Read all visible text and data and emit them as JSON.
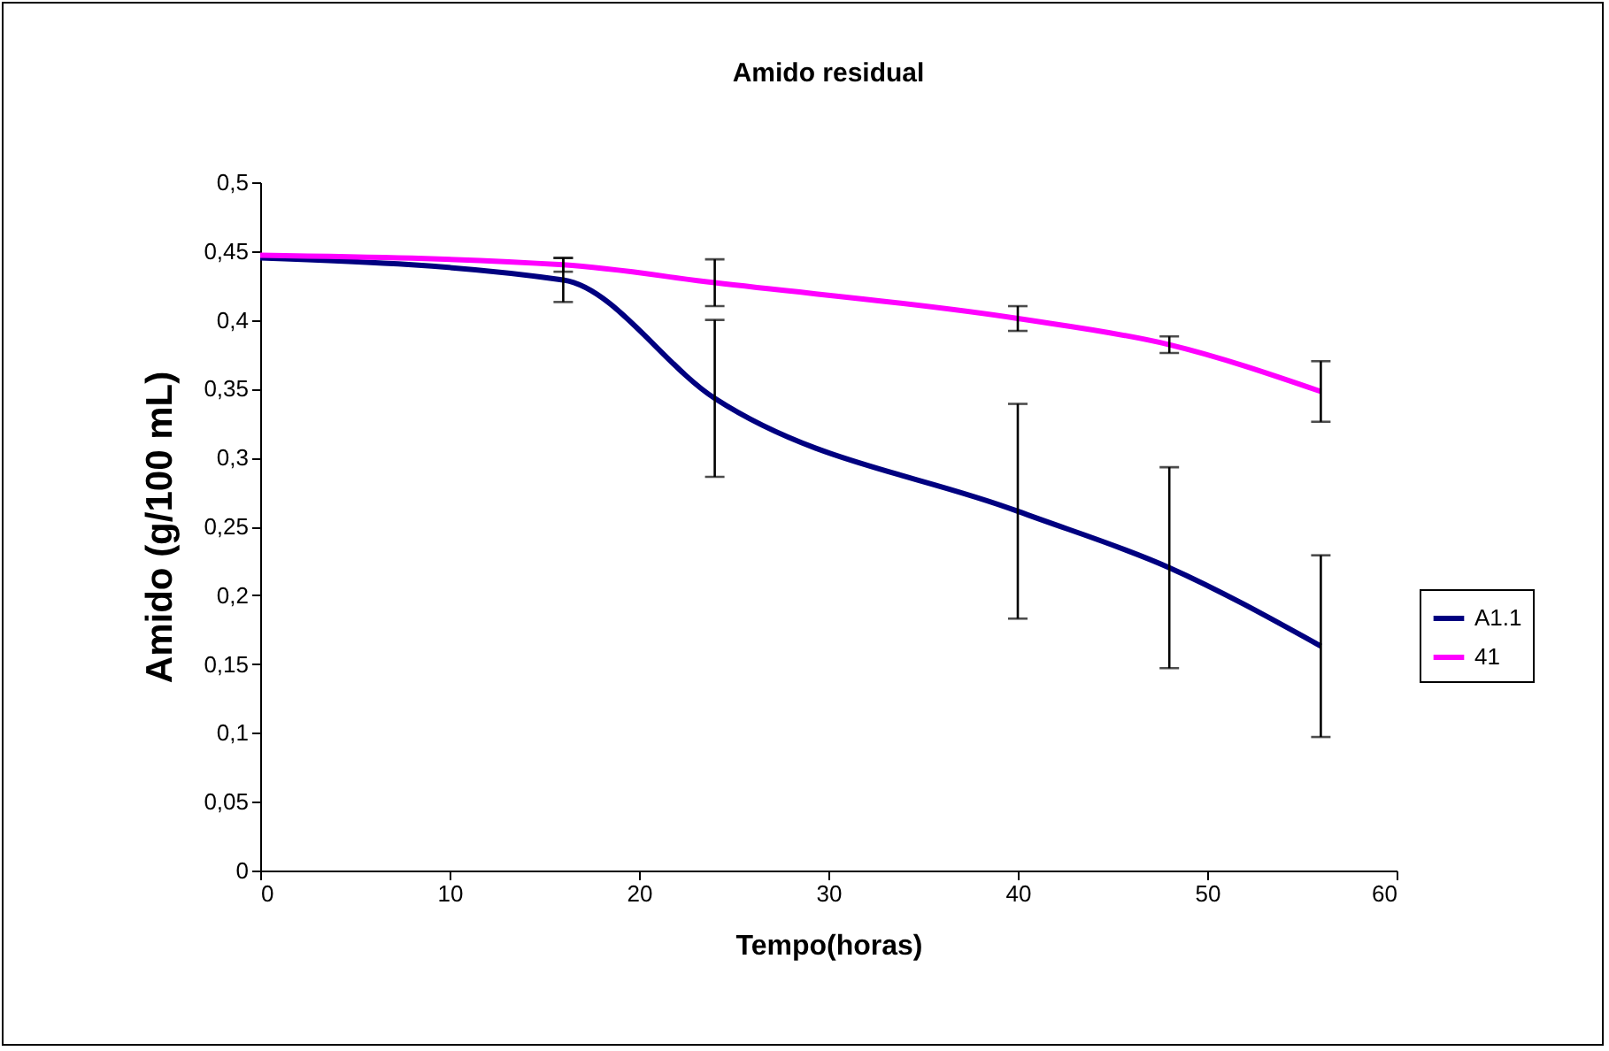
{
  "chart_data": {
    "type": "line",
    "title": "Amido residual",
    "xlabel": "Tempo(horas)",
    "ylabel": "Amido (g/100 mL)",
    "x": [
      0,
      16,
      24,
      40,
      48,
      56
    ],
    "series": [
      {
        "name": "A1.1",
        "color": "#000080",
        "values": [
          0.445,
          0.429,
          0.343,
          0.261,
          0.22,
          0.163
        ],
        "errors": [
          null,
          0.016,
          0.057,
          0.078,
          0.073,
          0.066
        ]
      },
      {
        "name": "41",
        "color": "#ff00ff",
        "values": [
          0.447,
          0.44,
          0.427,
          0.401,
          0.382,
          0.348
        ],
        "errors": [
          null,
          0.005,
          0.017,
          0.009,
          0.006,
          0.022
        ]
      }
    ],
    "xlim": [
      0,
      60
    ],
    "xticks": [
      0,
      10,
      20,
      30,
      40,
      50,
      60
    ],
    "ylim": [
      0,
      0.5
    ],
    "yticks": [
      0,
      {
        "value": 0.05,
        "label": "0,05"
      },
      {
        "value": 0.1,
        "label": "0,1"
      },
      {
        "value": 0.15,
        "label": "0,15"
      },
      {
        "value": 0.2,
        "label": "0,2"
      },
      {
        "value": 0.25,
        "label": "0,25"
      },
      {
        "value": 0.3,
        "label": "0,3"
      },
      {
        "value": 0.35,
        "label": "0,35"
      },
      {
        "value": 0.4,
        "label": "0,4"
      },
      {
        "value": 0.45,
        "label": "0,45"
      },
      {
        "value": 0.5,
        "label": "0,5"
      }
    ],
    "grid": false,
    "legend": "right",
    "marker": "none",
    "line_style": "solid"
  }
}
